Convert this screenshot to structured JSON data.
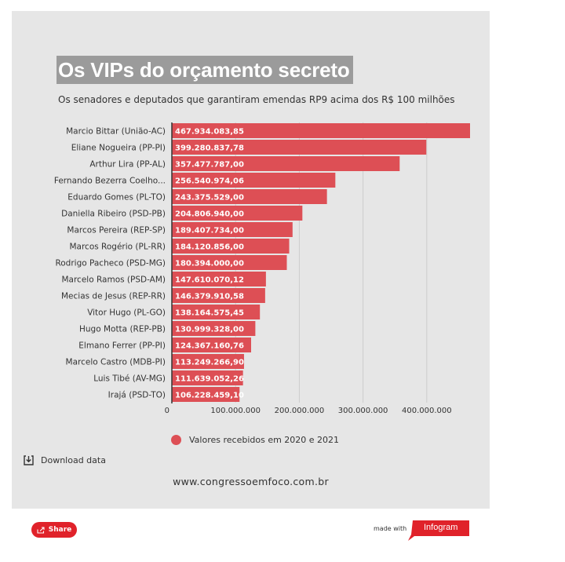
{
  "header": {
    "title": "Os VIPs do orçamento secreto",
    "subtitle": "Os senadores e deputados que garantiram emendas RP9 acima dos R$ 100 milhões"
  },
  "chart_data": {
    "type": "bar",
    "orientation": "horizontal",
    "title": "Os VIPs do orçamento secreto",
    "subtitle": "Os senadores e deputados que garantiram emendas RP9 acima dos R$ 100 milhões",
    "categories": [
      "Marcio Bittar (União-AC)",
      "Eliane Nogueira (PP-PI)",
      "Arthur Lira (PP-AL)",
      "Fernando Bezerra Coelho...",
      "Eduardo Gomes (PL-TO)",
      "Daniella Ribeiro (PSD-PB)",
      "Marcos Pereira (REP-SP)",
      "Marcos Rogério (PL-RR)",
      "Rodrigo Pacheco (PSD-MG)",
      "Marcelo Ramos (PSD-AM)",
      "Mecias de Jesus (REP-RR)",
      "Vitor Hugo (PL-GO)",
      "Hugo Motta (REP-PB)",
      "Elmano Ferrer (PP-PI)",
      "Marcelo Castro (MDB-PI)",
      "Luis Tibé (AV-MG)",
      "Irajá (PSD-TO)"
    ],
    "values": [
      467934083.85,
      399280837.78,
      357477787.0,
      256540974.06,
      243375529.0,
      204806940.0,
      189407734.0,
      184120856.0,
      180394000.0,
      147610070.12,
      146379910.58,
      138164575.45,
      130999328.0,
      124367160.76,
      113249266.9,
      111639052.26,
      106228459.1
    ],
    "value_labels": [
      "467.934.083,85",
      "399.280.837,78",
      "357.477.787,00",
      "256.540.974,06",
      "243.375.529,00",
      "204.806.940,00",
      "189.407.734,00",
      "184.120.856,00",
      "180.394.000,00",
      "147.610.070,12",
      "146.379.910,58",
      "138.164.575,45",
      "130.999.328,00",
      "124.367.160,76",
      "113.249.266,90",
      "111.639.052,26",
      "106.228.459,10"
    ],
    "xlim": [
      0,
      467934083.85
    ],
    "xticks": [
      0,
      100000000,
      200000000,
      300000000,
      400000000
    ],
    "xtick_labels": [
      "0",
      "100.000.000",
      "200.000.000",
      "300.000.000",
      "400.000.000"
    ],
    "grid": true,
    "series": [
      {
        "name": "Valores recebidos em 2020 e 2021",
        "color": "#dd4f55"
      }
    ],
    "legend_position": "bottom"
  },
  "legend": {
    "label": "Valores recebidos em 2020 e 2021"
  },
  "download": {
    "label": "Download data",
    "icon": "download-icon"
  },
  "footer": {
    "url": "www.congressoemfoco.com.br"
  },
  "share": {
    "label": "Share",
    "icon": "share-icon"
  },
  "branding": {
    "made_with": "made with",
    "logo_text": "Infogram",
    "color": "#e0222a"
  }
}
